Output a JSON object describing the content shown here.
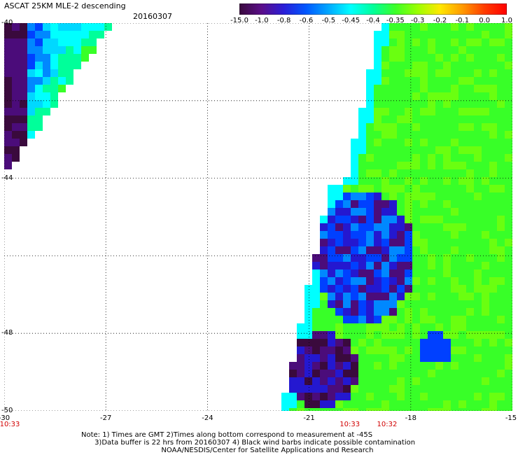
{
  "header": {
    "title": "ASCAT 25KM MLE-2 descending",
    "date": "20160307"
  },
  "colorbar": {
    "labels": [
      "-15.0",
      "-1.0",
      "-0.8",
      "-0.6",
      "-0.5",
      "-0.45",
      "-0.4",
      "-0.35",
      "-0.3",
      "-0.2",
      "-0.1",
      "0.0",
      "1.0"
    ],
    "colors": [
      "#3a0a3d",
      "#5b0e8a",
      "#2a1ed8",
      "#0058ff",
      "#00a8ff",
      "#00ffff",
      "#00ff9a",
      "#3cff28",
      "#9cff00",
      "#ffe800",
      "#ff9a00",
      "#ff3c00",
      "#ff0000"
    ]
  },
  "map": {
    "lon_range": [
      -30,
      -15
    ],
    "lat_range": [
      -50,
      -40
    ],
    "x_ticks": [
      "-30",
      "-27",
      "-24",
      "-21",
      "-18",
      "-15"
    ],
    "y_ticks": [
      "-40",
      "-42",
      "-44",
      "-46",
      "-48",
      "-50"
    ],
    "y_ticks_visible": [
      "-40",
      "",
      "-44",
      "",
      "-48",
      "-50"
    ],
    "pass_times": [
      {
        "label": "10:33",
        "lon": -30
      },
      {
        "label": "10:33",
        "lon": -19.8
      },
      {
        "label": "10:32",
        "lon": -18.7
      }
    ]
  },
  "notes": {
    "line1": "Note: 1) Times are GMT 2)Times along bottom correspond to measurement at -45S",
    "line2": "      3)Data buffer is 22 hrs from 20160307 4) Black wind barbs indicate possible contamination",
    "line3": "                                    NOAA/NESDIS/Center for Satellite Applications and Research"
  }
}
